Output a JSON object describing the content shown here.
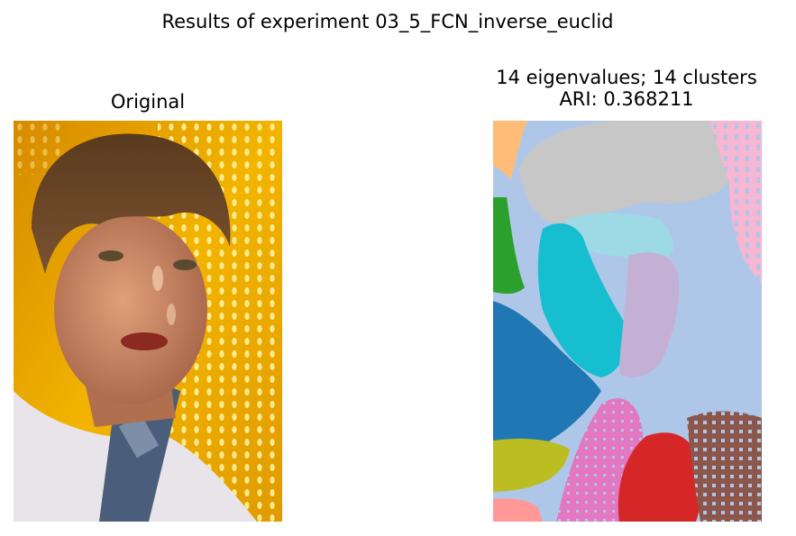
{
  "figure": {
    "suptitle": "Results of experiment 03_5_FCN_inverse_euclid"
  },
  "left_panel": {
    "title": "Original",
    "image": "portrait-photo-woman-yellow-dotted-background"
  },
  "right_panel": {
    "title_line1": "14 eigenvalues; 14 clusters",
    "title_line2": "ARI: 0.368211",
    "image": "segmentation-map-14-clusters"
  },
  "colors": {
    "cluster_palette": [
      "#aec7e8",
      "#c7c7c7",
      "#ffbb78",
      "#2ca02c",
      "#17becf",
      "#9edae5",
      "#c5b0d5",
      "#1f77b4",
      "#f7b6d2",
      "#bcbd22",
      "#e377c2",
      "#d62728",
      "#8c564b",
      "#ff9896"
    ],
    "background_orange": "#e8a000",
    "skin": "#c98a62",
    "hair": "#6b4a2a"
  }
}
